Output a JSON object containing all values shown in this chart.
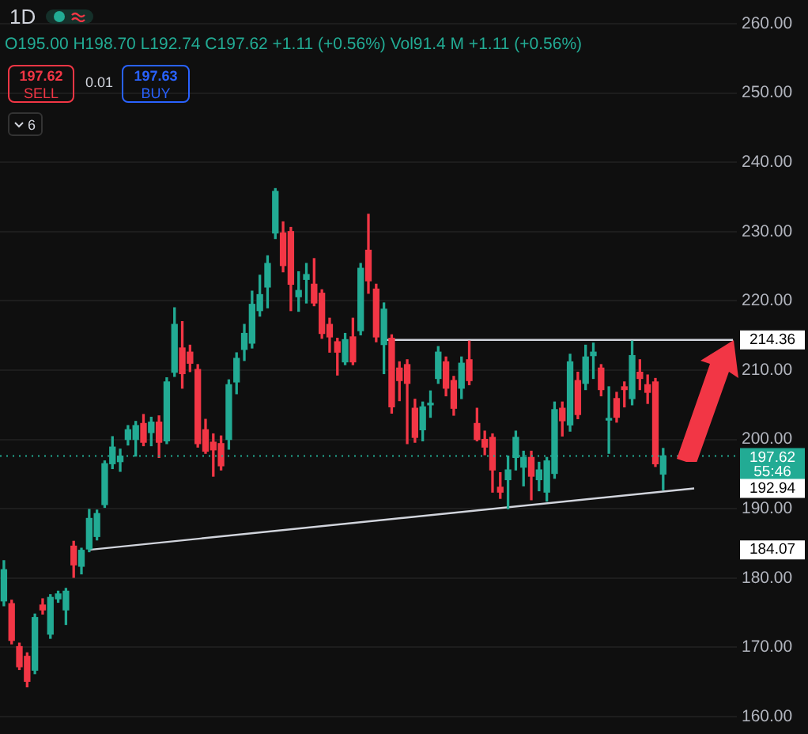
{
  "chart_data": {
    "type": "candlestick",
    "title": "1D",
    "subtitle": "O195.00 H198.70 L192.74 C197.62 +1.11 (+0.56%) Vol91.4 M +1.11 (+0.56%)",
    "categories": [
      null,
      null,
      null,
      null,
      null,
      null,
      null,
      null,
      null,
      null,
      null,
      null,
      null,
      null,
      null,
      null,
      null,
      null,
      null,
      null,
      null,
      null,
      null,
      null,
      null,
      null,
      null,
      null,
      null,
      null,
      null,
      null,
      null,
      null,
      null,
      null,
      null,
      null,
      null,
      null,
      null,
      null,
      null,
      null,
      null,
      null,
      null,
      null,
      null,
      null,
      null,
      null,
      null,
      null,
      null,
      null,
      null,
      null,
      null,
      null,
      null,
      null,
      null,
      null,
      null,
      null,
      null,
      null,
      null,
      null,
      null,
      null,
      null,
      null,
      null,
      null,
      null,
      null,
      null,
      null,
      null,
      null,
      null,
      null,
      null,
      null,
      null,
      null,
      null,
      null,
      null,
      null,
      null,
      null,
      null
    ],
    "ohlc": [
      [
        176.7,
        182.5,
        176,
        181.2
      ],
      [
        176.3,
        176.8,
        170.5,
        171
      ],
      [
        170.1,
        170.6,
        166.8,
        167.2
      ],
      [
        168.7,
        169.2,
        164.3,
        165.1
      ],
      [
        166.7,
        174.8,
        166.2,
        174.3
      ],
      [
        176.1,
        177,
        174.8,
        175.4
      ],
      [
        171.9,
        177.6,
        171.3,
        177.2
      ],
      [
        177,
        178.1,
        176.5,
        177.7
      ],
      [
        175.4,
        178.5,
        173.3,
        178.1
      ],
      [
        184.6,
        185.3,
        180.1,
        181.9
      ],
      [
        181.7,
        184.3,
        180.6,
        184
      ],
      [
        184.2,
        189.9,
        183.8,
        188.6
      ],
      [
        186,
        189.8,
        185.5,
        189.3
      ],
      [
        190.6,
        196.9,
        190.2,
        196.5
      ],
      [
        196.5,
        200.4,
        195.8,
        198.9
      ],
      [
        196.8,
        198.6,
        195.4,
        197.6
      ],
      [
        200,
        202,
        199.2,
        201.4
      ],
      [
        200,
        202.6,
        197.6,
        202
      ],
      [
        202.3,
        203.6,
        199.1,
        199.6
      ],
      [
        201,
        203.2,
        199.1,
        202.5
      ],
      [
        202.5,
        203.4,
        197.4,
        199.6
      ],
      [
        199.8,
        208.9,
        199.4,
        208.3
      ],
      [
        209.7,
        219,
        209.1,
        216.6
      ],
      [
        213.2,
        217,
        207.4,
        209.5
      ],
      [
        212.6,
        213.6,
        209.8,
        211
      ],
      [
        210.1,
        210.8,
        198.9,
        199.4
      ],
      [
        201.4,
        202.9,
        198,
        198.3
      ],
      [
        199.6,
        200.8,
        194.7,
        198.5
      ],
      [
        199.4,
        200.5,
        195.6,
        196.2
      ],
      [
        200,
        208.6,
        198.6,
        207.9
      ],
      [
        208.3,
        212.5,
        206.6,
        211.7
      ],
      [
        213,
        216.6,
        211.4,
        215.3
      ],
      [
        213.9,
        221.4,
        213.2,
        219.5
      ],
      [
        218.6,
        223.7,
        217.8,
        220.9
      ],
      [
        222,
        226.5,
        219,
        225.4
      ],
      [
        229.8,
        236.2,
        229,
        235.8
      ],
      [
        229.8,
        231.4,
        224.2,
        225.1
      ],
      [
        230,
        230.6,
        218.6,
        222.4
      ],
      [
        220.6,
        224.2,
        218.5,
        221.5
      ],
      [
        223.1,
        225.4,
        219.7,
        223.8
      ],
      [
        222.4,
        226.1,
        219.3,
        219.7
      ],
      [
        221.1,
        221.6,
        214.6,
        215.3
      ],
      [
        216.6,
        217.5,
        212.6,
        214.8
      ],
      [
        214.1,
        214.6,
        209.3,
        212.6
      ],
      [
        211.2,
        215.3,
        210.8,
        214.4
      ],
      [
        214.8,
        217.5,
        210.8,
        211.2
      ],
      [
        215.7,
        225.4,
        215.1,
        224.7
      ],
      [
        227.3,
        232.5,
        221.1,
        222.9
      ],
      [
        221.7,
        222.4,
        214.1,
        214.8
      ],
      [
        213.7,
        219.7,
        209.5,
        218.8
      ],
      [
        214.6,
        215.1,
        203.8,
        204.7
      ],
      [
        210.3,
        211.2,
        205.6,
        208.5
      ],
      [
        210.8,
        211.5,
        199.4,
        208.1
      ],
      [
        204.5,
        205.8,
        199.6,
        200.3
      ],
      [
        201.4,
        205.4,
        199.8,
        204.7
      ],
      [
        205,
        207,
        203.2,
        205.2
      ],
      [
        208.8,
        213.4,
        208.1,
        212.6
      ],
      [
        211.2,
        211.9,
        206.3,
        207.4
      ],
      [
        208.5,
        209.1,
        203.5,
        204.5
      ],
      [
        207.4,
        211.9,
        205.9,
        211
      ],
      [
        211.5,
        214.2,
        207.9,
        208.5
      ],
      [
        202.3,
        204.5,
        199.8,
        200
      ],
      [
        200,
        201.2,
        197.8,
        198.9
      ],
      [
        200.3,
        200.8,
        192.4,
        195.6
      ],
      [
        193.1,
        195.2,
        191.5,
        192.4
      ],
      [
        194.2,
        197.6,
        190,
        195.6
      ],
      [
        197.4,
        201.2,
        195.6,
        200.3
      ],
      [
        196,
        198.3,
        193.3,
        197.4
      ],
      [
        197.4,
        198.3,
        191.3,
        194.7
      ],
      [
        194.2,
        196.7,
        192.6,
        195.6
      ],
      [
        192.4,
        197.4,
        191.1,
        196.9
      ],
      [
        195.1,
        205.4,
        194.4,
        204.3
      ],
      [
        204.5,
        205.4,
        200.5,
        202.7
      ],
      [
        202.1,
        212.3,
        201.2,
        211.2
      ],
      [
        208.5,
        209.7,
        203,
        203.6
      ],
      [
        208.1,
        213.6,
        207.2,
        211.9
      ],
      [
        212.1,
        213.9,
        208.8,
        212.6
      ],
      [
        210.3,
        210.8,
        206.3,
        207.2
      ],
      [
        202.8,
        207.6,
        198,
        203
      ],
      [
        205.9,
        206.8,
        202.5,
        203.2
      ],
      [
        207.6,
        208.3,
        204.7,
        207.2
      ],
      [
        205.9,
        214.2,
        205,
        212.1
      ],
      [
        209.7,
        211.5,
        207.2,
        208.8
      ],
      [
        207.9,
        209.3,
        205.2,
        206.8
      ],
      [
        208.3,
        208.8,
        196.1,
        196.5
      ],
      [
        195,
        198.7,
        192.74,
        197.62
      ],
      null,
      null,
      null,
      null,
      null,
      null,
      null,
      null,
      null
    ],
    "colors": [
      "#22ab94",
      "#f23645",
      "#f23645",
      "#f23645",
      "#22ab94",
      "#f23645",
      "#22ab94",
      "#22ab94",
      "#22ab94",
      "#f23645",
      "#22ab94",
      "#22ab94",
      "#22ab94",
      "#22ab94",
      "#22ab94",
      "#22ab94",
      "#22ab94",
      "#22ab94",
      "#f23645",
      "#22ab94",
      "#f23645",
      "#22ab94",
      "#22ab94",
      "#f23645",
      "#f23645",
      "#f23645",
      "#f23645",
      "#f23645",
      "#f23645",
      "#22ab94",
      "#22ab94",
      "#22ab94",
      "#22ab94",
      "#22ab94",
      "#22ab94",
      "#22ab94",
      "#f23645",
      "#f23645",
      "#22ab94",
      "#22ab94",
      "#f23645",
      "#f23645",
      "#f23645",
      "#f23645",
      "#22ab94",
      "#f23645",
      "#22ab94",
      "#f23645",
      "#f23645",
      "#22ab94",
      "#f23645",
      "#f23645",
      "#f23645",
      "#f23645",
      "#22ab94",
      "#22ab94",
      "#22ab94",
      "#f23645",
      "#f23645",
      "#22ab94",
      "#f23645",
      "#f23645",
      "#f23645",
      "#f23645",
      "#f23645",
      "#22ab94",
      "#22ab94",
      "#22ab94",
      "#f23645",
      "#22ab94",
      "#22ab94",
      "#22ab94",
      "#f23645",
      "#22ab94",
      "#f23645",
      "#22ab94",
      "#22ab94",
      "#f23645",
      "#22ab94",
      "#f23645",
      "#f23645",
      "#22ab94",
      "#f23645",
      "#f23645",
      "#f23645",
      "#22ab94",
      null,
      null,
      null,
      null,
      null,
      null,
      null,
      null,
      null
    ],
    "series": [
      {
        "type": "line",
        "color": "#d1d4dc",
        "values": [
          null,
          null,
          null,
          null,
          null,
          null,
          null,
          null,
          null,
          null,
          null,
          184.07,
          null,
          null,
          null,
          null,
          null,
          null,
          null,
          null,
          null,
          null,
          null,
          null,
          null,
          null,
          null,
          null,
          null,
          null,
          null,
          null,
          null,
          null,
          null,
          null,
          null,
          null,
          null,
          null,
          null,
          null,
          null,
          null,
          null,
          null,
          null,
          null,
          null,
          null,
          null,
          null,
          null,
          null,
          null,
          null,
          null,
          null,
          null,
          null,
          null,
          null,
          null,
          null,
          null,
          null,
          null,
          null,
          null,
          null,
          null,
          null,
          null,
          null,
          null,
          null,
          null,
          null,
          null,
          null,
          null,
          null,
          null,
          null,
          null,
          null,
          null,
          null,
          null,
          192.94,
          null,
          null,
          null,
          null,
          null
        ]
      },
      {
        "type": "line",
        "color": "#d1d4dc",
        "values": [
          null,
          null,
          null,
          null,
          null,
          null,
          null,
          null,
          null,
          null,
          null,
          null,
          null,
          null,
          null,
          null,
          null,
          null,
          null,
          null,
          null,
          null,
          null,
          null,
          null,
          null,
          null,
          null,
          null,
          null,
          null,
          null,
          null,
          null,
          null,
          null,
          null,
          null,
          null,
          null,
          null,
          null,
          null,
          null,
          null,
          null,
          null,
          null,
          null,
          214.36,
          null,
          null,
          null,
          null,
          null,
          null,
          null,
          null,
          null,
          null,
          null,
          null,
          null,
          null,
          null,
          null,
          null,
          null,
          null,
          null,
          null,
          null,
          null,
          null,
          null,
          null,
          null,
          null,
          null,
          null,
          null,
          null,
          null,
          null,
          null,
          null,
          null,
          null,
          null,
          null,
          null,
          null,
          null,
          null,
          214.36
        ]
      }
    ],
    "ylim": [
      160,
      260
    ],
    "yticks": [
      {
        "value": 160,
        "label": "160.00"
      },
      {
        "value": 170,
        "label": "170.00"
      },
      {
        "value": 180,
        "label": "180.00"
      },
      {
        "value": 190,
        "label": "190.00"
      },
      {
        "value": 200,
        "label": "200.00"
      },
      {
        "value": 210,
        "label": "210.00"
      },
      {
        "value": 220,
        "label": "220.00"
      },
      {
        "value": 230,
        "label": "230.00"
      },
      {
        "value": 240,
        "label": "240.00"
      },
      {
        "value": 250,
        "label": "250.00"
      },
      {
        "value": 260,
        "label": "260.00"
      }
    ],
    "ref_lines": [
      {
        "axis": "y",
        "value": 197.62,
        "label": "197.62",
        "color": "#22ab94",
        "line_style": "dotted"
      }
    ],
    "annotations": [
      "197.62",
      "SELL",
      "0.01",
      "197.63",
      "BUY",
      "6",
      "55:46",
      "214.36",
      "192.94",
      "184.07"
    ],
    "grid": "y",
    "tick_labels": "y",
    "legend": false
  }
}
